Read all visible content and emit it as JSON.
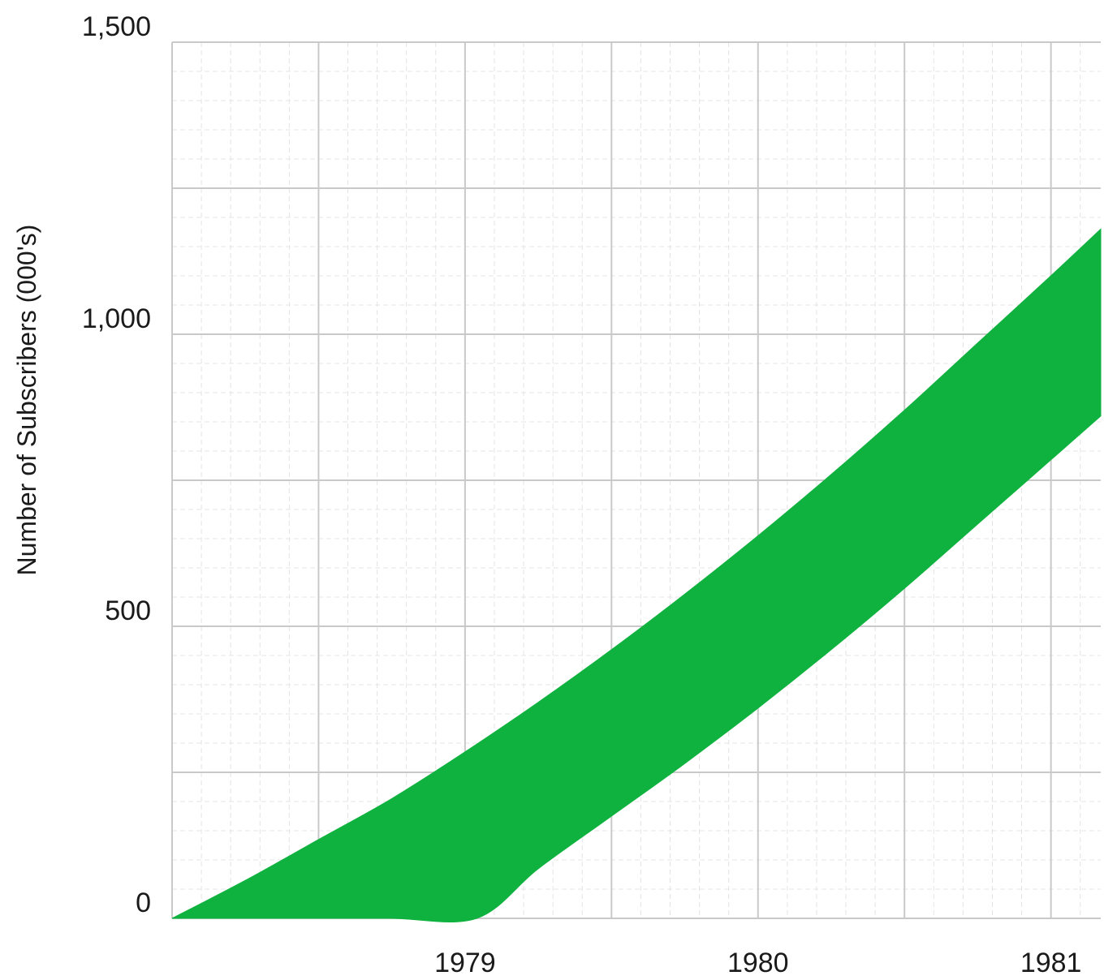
{
  "chart_data": {
    "type": "area",
    "title": "",
    "xlabel": "",
    "ylabel": "Number of Subscribers (000's)",
    "xlim": [
      1978,
      1981.17
    ],
    "ylim": [
      0,
      1500
    ],
    "x_ticks": [
      1979,
      1980,
      1981
    ],
    "x_tick_labels": [
      "1979",
      "1980",
      "1981"
    ],
    "y_ticks": [
      0,
      500,
      1000,
      1500
    ],
    "y_tick_labels": [
      "0",
      "500",
      "1,000",
      "1,500"
    ],
    "grid": true,
    "fill_color": "#0fb23e",
    "band": {
      "upper": {
        "x": [
          1978.0,
          1978.25,
          1978.5,
          1978.75,
          1979.0,
          1979.25,
          1979.5,
          1979.75,
          1980.0,
          1980.25,
          1980.5,
          1980.75,
          1981.0,
          1981.17
        ],
        "y": [
          0,
          65,
          135,
          205,
          285,
          370,
          460,
          555,
          655,
          760,
          870,
          985,
          1100,
          1180
        ]
      },
      "lower": {
        "x": [
          1978.0,
          1978.25,
          1978.5,
          1978.75,
          1979.04,
          1979.25,
          1979.5,
          1979.75,
          1980.0,
          1980.25,
          1980.5,
          1980.75,
          1981.0,
          1981.17
        ],
        "y": [
          0,
          0,
          0,
          0,
          0,
          85,
          175,
          265,
          360,
          460,
          565,
          675,
          785,
          860
        ]
      }
    }
  }
}
